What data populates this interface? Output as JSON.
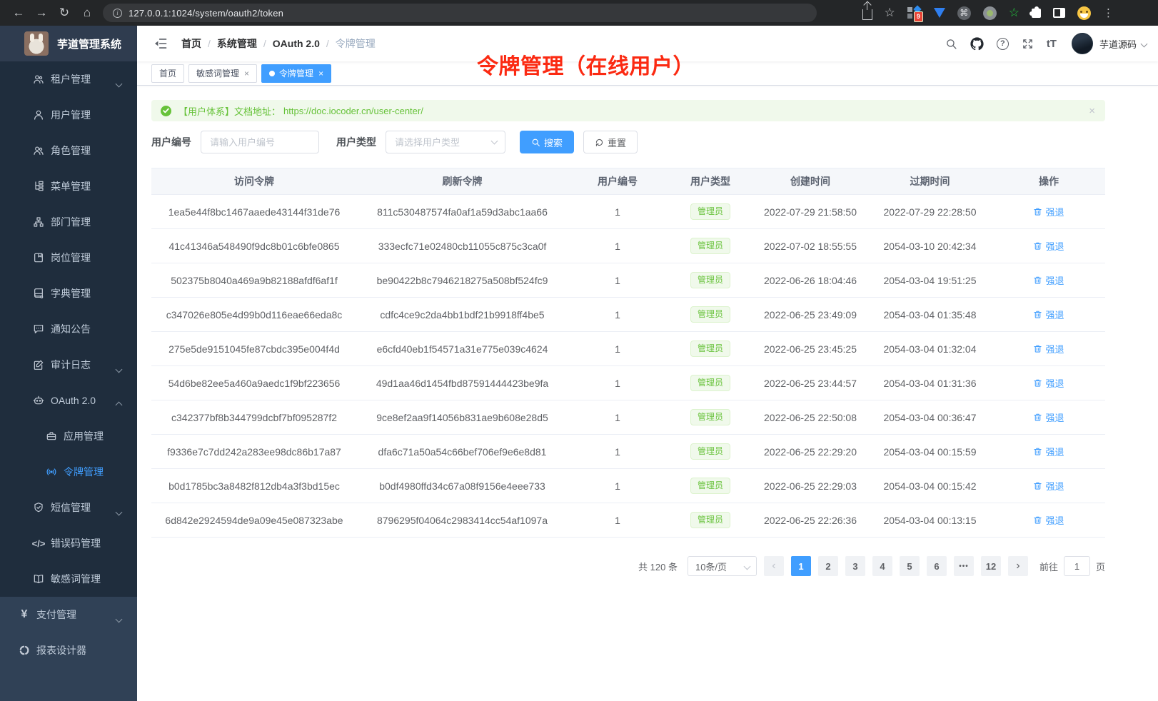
{
  "colors": {
    "accent": "#409eff",
    "success": "#67c23a",
    "annotation_red": "#fb2a12",
    "sidebar_bg": "#304156",
    "submenu_bg": "#1f2d3d"
  },
  "browser": {
    "url": "127.0.0.1:1024/system/oauth2/token",
    "extension_badge": "9"
  },
  "icons": {
    "close": "×",
    "back": "←",
    "forward": "→",
    "reload": "↻",
    "home": "⌂",
    "star": "☆",
    "cmd": "⌘",
    "green_star": "☆",
    "more": "⋮",
    "help": "?",
    "font_size": "tT",
    "prev": "‹",
    "next": "›",
    "ellipsis": "•••",
    "code": "</>",
    "yen": "¥",
    "info": "i"
  },
  "sidebar": {
    "title": "芋道管理系统",
    "items": [
      {
        "label": "租户管理",
        "icon": "users-icon"
      },
      {
        "label": "用户管理",
        "icon": "user-icon"
      },
      {
        "label": "角色管理",
        "icon": "users-icon"
      },
      {
        "label": "菜单管理",
        "icon": "menu-tree-icon"
      },
      {
        "label": "部门管理",
        "icon": "org-chart-icon"
      },
      {
        "label": "岗位管理",
        "icon": "id-badge-icon"
      },
      {
        "label": "字典管理",
        "icon": "dictionary-icon"
      },
      {
        "label": "通知公告",
        "icon": "message-icon"
      },
      {
        "label": "审计日志",
        "icon": "edit-log-icon"
      },
      {
        "label": "OAuth 2.0",
        "icon": "robot-icon"
      },
      {
        "label": "应用管理",
        "icon": "briefcase-icon"
      },
      {
        "label": "令牌管理",
        "icon": "broadcast-icon"
      },
      {
        "label": "短信管理",
        "icon": "shield-check-icon"
      },
      {
        "label": "错误码管理",
        "icon": "code-icon"
      },
      {
        "label": "敏感词管理",
        "icon": "open-book-icon"
      },
      {
        "label": "支付管理",
        "icon": "yen-icon"
      },
      {
        "label": "报表设计器",
        "icon": "segmented-circle-icon"
      }
    ]
  },
  "header": {
    "breadcrumb": [
      "首页",
      "系统管理",
      "OAuth 2.0",
      "令牌管理"
    ],
    "username": "芋道源码"
  },
  "annotation": {
    "text": "令牌管理（在线用户）"
  },
  "tabs": [
    {
      "label": "首页"
    },
    {
      "label": "敏感词管理"
    },
    {
      "label": "令牌管理"
    }
  ],
  "alert": {
    "prefix": "【用户体系】文档地址：",
    "link": "https://doc.iocoder.cn/user-center/"
  },
  "filters": {
    "user_id_label": "用户编号",
    "user_id_placeholder": "请输入用户编号",
    "user_type_label": "用户类型",
    "user_type_placeholder": "请选择用户类型",
    "search_label": "搜索",
    "reset_label": "重置"
  },
  "table": {
    "columns": [
      "访问令牌",
      "刷新令牌",
      "用户编号",
      "用户类型",
      "创建时间",
      "过期时间",
      "操作"
    ],
    "rows": [
      {
        "access": "1ea5e44f8bc1467aaede43144f31de76",
        "refresh": "811c530487574fa0af1a59d3abc1aa66",
        "user_id": "1",
        "user_type": "管理员",
        "created": "2022-07-29 21:58:50",
        "expires": "2022-07-29 22:28:50",
        "action": "强退"
      },
      {
        "access": "41c41346a548490f9dc8b01c6bfe0865",
        "refresh": "333ecfc71e02480cb11055c875c3ca0f",
        "user_id": "1",
        "user_type": "管理员",
        "created": "2022-07-02 18:55:55",
        "expires": "2054-03-10 20:42:34",
        "action": "强退"
      },
      {
        "access": "502375b8040a469a9b82188afdf6af1f",
        "refresh": "be90422b8c7946218275a508bf524fc9",
        "user_id": "1",
        "user_type": "管理员",
        "created": "2022-06-26 18:04:46",
        "expires": "2054-03-04 19:51:25",
        "action": "强退"
      },
      {
        "access": "c347026e805e4d99b0d116eae66eda8c",
        "refresh": "cdfc4ce9c2da4bb1bdf21b9918ff4be5",
        "user_id": "1",
        "user_type": "管理员",
        "created": "2022-06-25 23:49:09",
        "expires": "2054-03-04 01:35:48",
        "action": "强退"
      },
      {
        "access": "275e5de9151045fe87cbdc395e004f4d",
        "refresh": "e6cfd40eb1f54571a31e775e039c4624",
        "user_id": "1",
        "user_type": "管理员",
        "created": "2022-06-25 23:45:25",
        "expires": "2054-03-04 01:32:04",
        "action": "强退"
      },
      {
        "access": "54d6be82ee5a460a9aedc1f9bf223656",
        "refresh": "49d1aa46d1454fbd87591444423be9fa",
        "user_id": "1",
        "user_type": "管理员",
        "created": "2022-06-25 23:44:57",
        "expires": "2054-03-04 01:31:36",
        "action": "强退"
      },
      {
        "access": "c342377bf8b344799dcbf7bf095287f2",
        "refresh": "9ce8ef2aa9f14056b831ae9b608e28d5",
        "user_id": "1",
        "user_type": "管理员",
        "created": "2022-06-25 22:50:08",
        "expires": "2054-03-04 00:36:47",
        "action": "强退"
      },
      {
        "access": "f9336e7c7dd242a283ee98dc86b17a87",
        "refresh": "dfa6c71a50a54c66bef706ef9e6e8d81",
        "user_id": "1",
        "user_type": "管理员",
        "created": "2022-06-25 22:29:20",
        "expires": "2054-03-04 00:15:59",
        "action": "强退"
      },
      {
        "access": "b0d1785bc3a8482f812db4a3f3bd15ec",
        "refresh": "b0df4980ffd34c67a08f9156e4eee733",
        "user_id": "1",
        "user_type": "管理员",
        "created": "2022-06-25 22:29:03",
        "expires": "2054-03-04 00:15:42",
        "action": "强退"
      },
      {
        "access": "6d842e2924594de9a09e45e087323abe",
        "refresh": "8796295f04064c2983414cc54af1097a",
        "user_id": "1",
        "user_type": "管理员",
        "created": "2022-06-25 22:26:36",
        "expires": "2054-03-04 00:13:15",
        "action": "强退"
      }
    ]
  },
  "pagination": {
    "total": "共 120 条",
    "page_size": "10条/页",
    "first_page": "1",
    "middle_pages": [
      "2",
      "3",
      "4",
      "5",
      "6"
    ],
    "last_page": "12",
    "goto_label": "前往",
    "goto_value": "1",
    "goto_unit": "页"
  }
}
